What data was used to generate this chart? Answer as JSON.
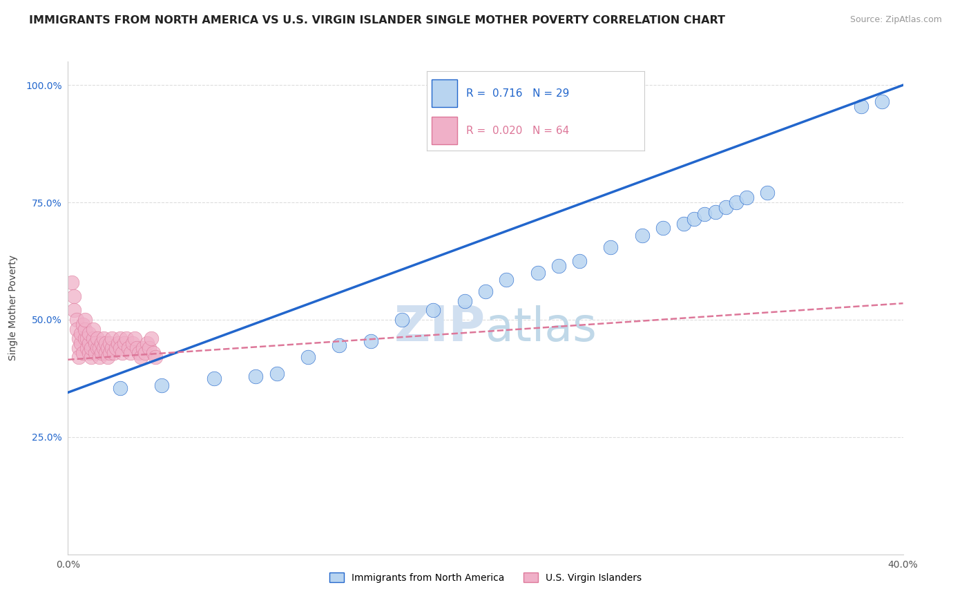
{
  "title": "IMMIGRANTS FROM NORTH AMERICA VS U.S. VIRGIN ISLANDER SINGLE MOTHER POVERTY CORRELATION CHART",
  "source": "Source: ZipAtlas.com",
  "ylabel": "Single Mother Poverty",
  "x_min": 0.0,
  "x_max": 0.4,
  "y_min": 0.0,
  "y_max": 1.05,
  "x_ticks": [
    0.0,
    0.1,
    0.2,
    0.3,
    0.4
  ],
  "x_tick_labels": [
    "0.0%",
    "",
    "",
    "",
    "40.0%"
  ],
  "y_ticks": [
    0.25,
    0.5,
    0.75,
    1.0
  ],
  "y_tick_labels": [
    "25.0%",
    "50.0%",
    "75.0%",
    "100.0%"
  ],
  "legend_r_blue": "0.716",
  "legend_n_blue": "29",
  "legend_r_pink": "0.020",
  "legend_n_pink": "64",
  "legend_label_blue": "Immigrants from North America",
  "legend_label_pink": "U.S. Virgin Islanders",
  "blue_color": "#b8d4f0",
  "blue_line_color": "#2266cc",
  "pink_color": "#f0b0c8",
  "pink_line_color": "#dd7799",
  "blue_scatter_x": [
    0.025,
    0.045,
    0.07,
    0.09,
    0.1,
    0.115,
    0.13,
    0.145,
    0.16,
    0.175,
    0.19,
    0.2,
    0.21,
    0.225,
    0.235,
    0.245,
    0.26,
    0.275,
    0.285,
    0.295,
    0.3,
    0.305,
    0.31,
    0.315,
    0.32,
    0.325,
    0.335,
    0.38,
    0.39
  ],
  "blue_scatter_y": [
    0.355,
    0.36,
    0.375,
    0.38,
    0.385,
    0.42,
    0.445,
    0.455,
    0.5,
    0.52,
    0.54,
    0.56,
    0.585,
    0.6,
    0.615,
    0.625,
    0.655,
    0.68,
    0.695,
    0.705,
    0.715,
    0.725,
    0.73,
    0.74,
    0.75,
    0.76,
    0.77,
    0.955,
    0.965
  ],
  "pink_scatter_x": [
    0.002,
    0.003,
    0.003,
    0.004,
    0.004,
    0.005,
    0.005,
    0.005,
    0.006,
    0.006,
    0.007,
    0.007,
    0.008,
    0.008,
    0.008,
    0.009,
    0.009,
    0.01,
    0.01,
    0.01,
    0.011,
    0.011,
    0.012,
    0.012,
    0.013,
    0.013,
    0.014,
    0.014,
    0.015,
    0.015,
    0.016,
    0.016,
    0.017,
    0.017,
    0.018,
    0.018,
    0.019,
    0.019,
    0.02,
    0.02,
    0.021,
    0.021,
    0.022,
    0.023,
    0.024,
    0.025,
    0.025,
    0.026,
    0.027,
    0.028,
    0.029,
    0.03,
    0.031,
    0.032,
    0.033,
    0.034,
    0.035,
    0.036,
    0.037,
    0.038,
    0.039,
    0.04,
    0.041,
    0.042
  ],
  "pink_scatter_y": [
    0.58,
    0.55,
    0.52,
    0.5,
    0.48,
    0.46,
    0.44,
    0.42,
    0.45,
    0.47,
    0.43,
    0.49,
    0.46,
    0.48,
    0.5,
    0.44,
    0.46,
    0.43,
    0.45,
    0.47,
    0.42,
    0.44,
    0.46,
    0.48,
    0.43,
    0.45,
    0.44,
    0.46,
    0.42,
    0.44,
    0.43,
    0.45,
    0.44,
    0.46,
    0.43,
    0.45,
    0.44,
    0.42,
    0.43,
    0.45,
    0.44,
    0.46,
    0.43,
    0.44,
    0.45,
    0.46,
    0.44,
    0.43,
    0.45,
    0.46,
    0.44,
    0.43,
    0.45,
    0.46,
    0.44,
    0.43,
    0.42,
    0.44,
    0.43,
    0.45,
    0.44,
    0.46,
    0.43,
    0.42
  ],
  "blue_trend_x0": 0.0,
  "blue_trend_y0": 0.345,
  "blue_trend_x1": 0.4,
  "blue_trend_y1": 1.0,
  "pink_trend_x0": 0.0,
  "pink_trend_y0": 0.415,
  "pink_trend_x1": 0.4,
  "pink_trend_y1": 0.535,
  "background_color": "#ffffff",
  "grid_color": "#dddddd",
  "title_fontsize": 11.5,
  "axis_label_fontsize": 10,
  "tick_fontsize": 10,
  "watermark_zip": "ZIP",
  "watermark_atlas": "atlas",
  "watermark_color_zip": "#d0dff0",
  "watermark_color_atlas": "#c0d8e8",
  "watermark_fontsize": 52
}
